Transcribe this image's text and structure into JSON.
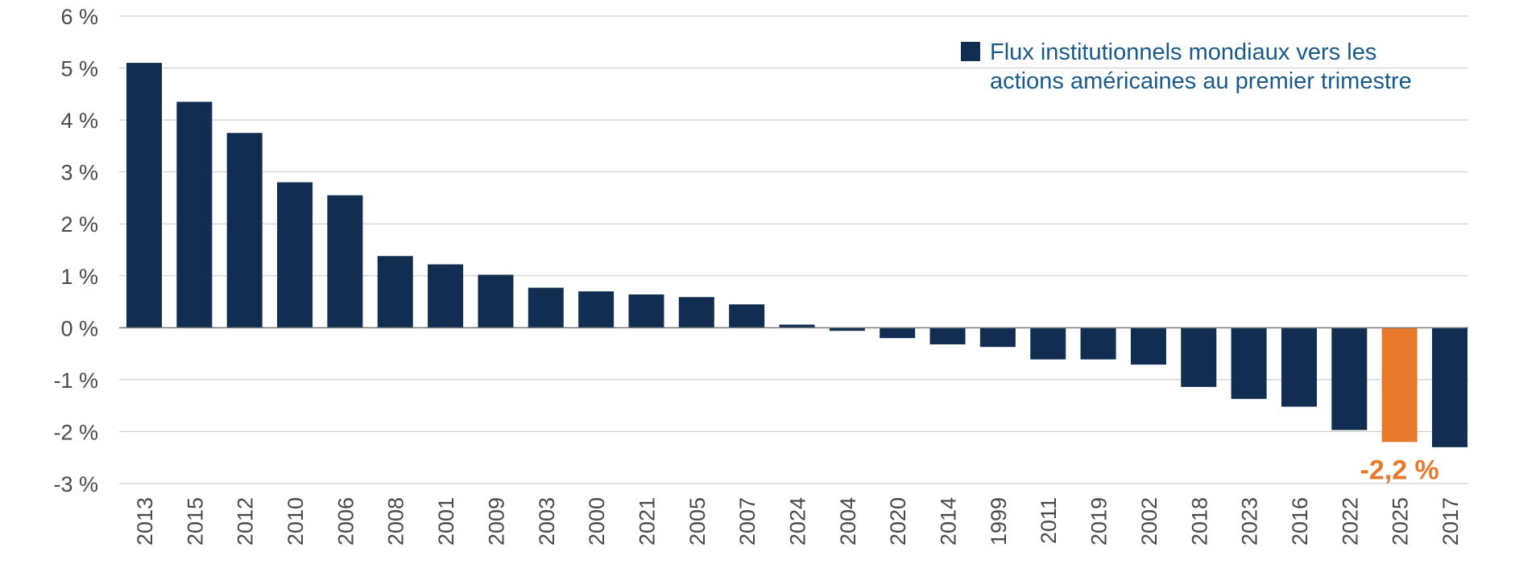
{
  "colors": {
    "bar": "#112d52",
    "highlight": "#e8792a",
    "grid": "#c8c8c8",
    "axis_line": "#777777"
  },
  "chart_data": {
    "type": "bar",
    "categories": [
      "2013",
      "2015",
      "2012",
      "2010",
      "2006",
      "2008",
      "2001",
      "2009",
      "2003",
      "2000",
      "2021",
      "2005",
      "2007",
      "2024",
      "2004",
      "2020",
      "2014",
      "1999",
      "2011",
      "2019",
      "2002",
      "2018",
      "2023",
      "2016",
      "2022",
      "2025",
      "2017"
    ],
    "values": [
      5.1,
      4.35,
      3.75,
      2.8,
      2.55,
      1.38,
      1.22,
      1.02,
      0.77,
      0.7,
      0.64,
      0.59,
      0.45,
      0.06,
      -0.06,
      -0.2,
      -0.32,
      -0.37,
      -0.61,
      -0.61,
      -0.71,
      -1.14,
      -1.37,
      -1.52,
      -1.97,
      -2.2,
      -2.3
    ],
    "highlight_category": "2025",
    "ylim": [
      -3,
      6
    ],
    "yticks": [
      6,
      5,
      4,
      3,
      2,
      1,
      0,
      -1,
      -2,
      -3
    ],
    "ytick_labels": [
      "6 %",
      "5 %",
      "4 %",
      "3 %",
      "2 %",
      "1 %",
      "0 %",
      "-1 %",
      "-2 %",
      "-3 %"
    ],
    "grid": true,
    "legend": {
      "position": "top-right",
      "lines": [
        "Flux institutionnels mondiaux vers les",
        "actions américaines au premier trimestre"
      ]
    },
    "annotation": {
      "category": "2025",
      "text": "-2,2 %"
    }
  }
}
